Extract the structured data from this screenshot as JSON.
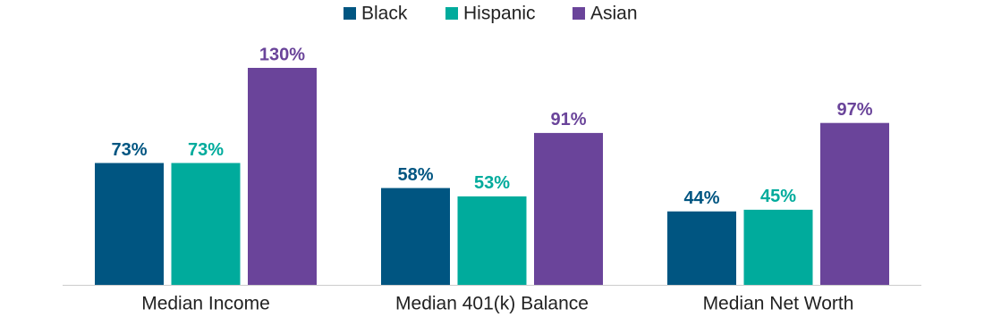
{
  "chart_data": {
    "type": "bar",
    "categories": [
      "Median Income",
      "Median 401(k) Balance",
      "Median Net Worth"
    ],
    "series": [
      {
        "name": "Black",
        "color": "#005581",
        "values": [
          73,
          58,
          44
        ],
        "value_labels": [
          "73%",
          "58%",
          "44%"
        ]
      },
      {
        "name": "Hispanic",
        "color": "#00ab9c",
        "values": [
          73,
          53,
          45
        ],
        "value_labels": [
          "73%",
          "53%",
          "45%"
        ]
      },
      {
        "name": "Asian",
        "color": "#6a449a",
        "values": [
          130,
          91,
          97
        ],
        "value_labels": [
          "130%",
          "91%",
          "97%"
        ]
      }
    ],
    "legend": "top"
  }
}
